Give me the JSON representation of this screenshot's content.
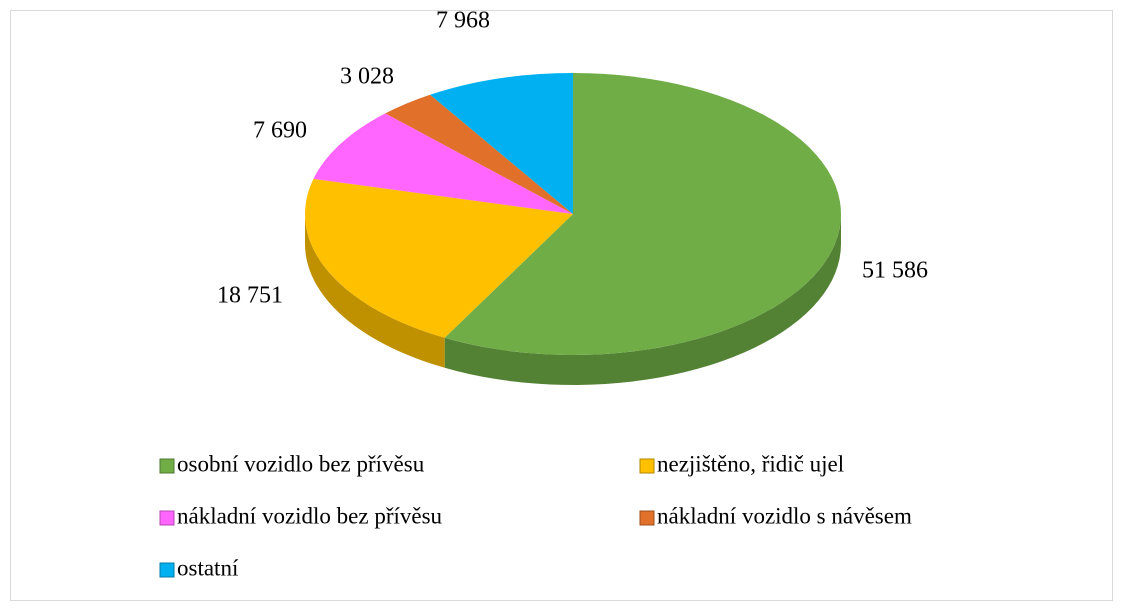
{
  "chart_data": {
    "type": "pie",
    "categories": [
      "osobní vozidlo bez přívěsu",
      "nezjištěno, řidič ujel",
      "nákladní vozidlo bez přívěsu",
      "nákladní vozidlo s návěsem",
      "ostatní"
    ],
    "values": [
      51586,
      18751,
      7690,
      3028,
      7968
    ],
    "value_labels": [
      "51 586",
      "18 751",
      "7 690",
      "3 028",
      "7 968"
    ],
    "colors": [
      "#70ad47",
      "#ffc000",
      "#ff66ff",
      "#e0702a",
      "#00b0f0"
    ]
  }
}
